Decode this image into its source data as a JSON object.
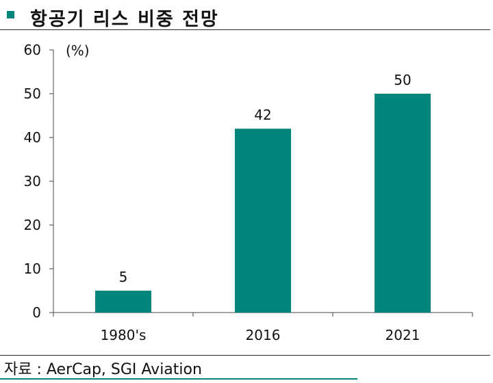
{
  "header": {
    "title": "항공기 리스 비중 전망"
  },
  "footer": {
    "source": "자료 : AerCap, SGI Aviation"
  },
  "colors": {
    "accent": "#00857a",
    "bar": "#00857a"
  },
  "chart_data": {
    "type": "bar",
    "categories": [
      "1980's",
      "2016",
      "2021"
    ],
    "values": [
      5,
      42,
      50
    ],
    "data_labels": [
      "5",
      "42",
      "50"
    ],
    "unit_label": "(%)",
    "ylim": [
      0,
      60
    ],
    "yticks": [
      0,
      10,
      20,
      30,
      40,
      50,
      60
    ],
    "grid": false,
    "legend": "none"
  }
}
